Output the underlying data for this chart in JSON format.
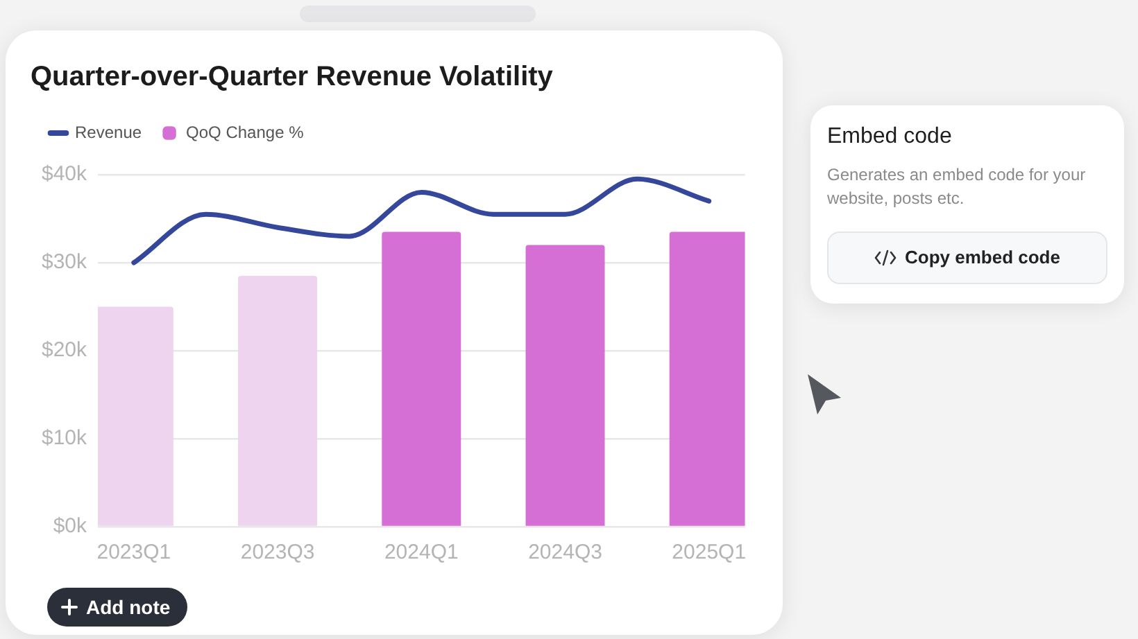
{
  "chart_data": [
    {
      "type": "bar",
      "title": "Quarter-over-Quarter Revenue Volatility",
      "categories": [
        "2023Q1",
        null,
        "2023Q3",
        null,
        "2024Q1",
        null,
        "2024Q3",
        null,
        "2025Q1"
      ],
      "series": [
        {
          "name": "Revenue",
          "type": "line",
          "color": "#34479a",
          "values": [
            30000,
            35500,
            34000,
            33000,
            38000,
            35500,
            35500,
            39500,
            37000
          ]
        },
        {
          "name": "QoQ Change %",
          "type": "bar",
          "color": "#d56fd5",
          "colors": [
            "#efd4ef",
            null,
            "#efd4ef",
            null,
            "#d56fd5",
            null,
            "#d56fd5",
            null,
            "#d56fd5"
          ],
          "values": [
            25000,
            null,
            28500,
            null,
            33500,
            null,
            32000,
            null,
            33500
          ]
        }
      ],
      "ylim": [
        0,
        40000
      ],
      "yticks": [
        {
          "value": 0,
          "label": "$0k"
        },
        {
          "value": 10000,
          "label": "$10k"
        },
        {
          "value": 20000,
          "label": "$20k"
        },
        {
          "value": 30000,
          "label": "$30k"
        },
        {
          "value": 40000,
          "label": "$40k"
        }
      ],
      "grid": "y",
      "legend": "top left",
      "marker": "none",
      "annotations": [
        "Add note"
      ]
    },
    {
      "type": "other",
      "title": "Embed code",
      "subtitle": "Generates an embed code for your website, posts etc.",
      "annotations": [
        "Copy embed code"
      ]
    }
  ]
}
